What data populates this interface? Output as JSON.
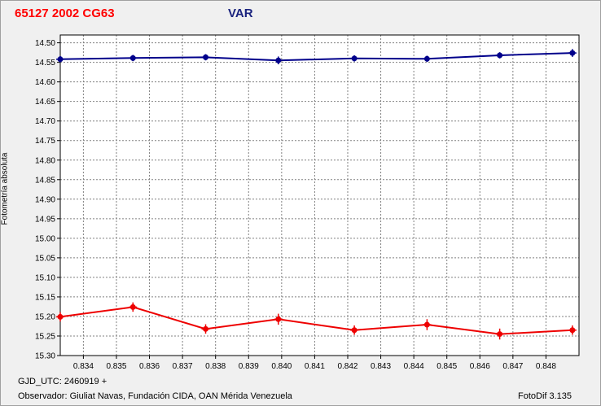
{
  "header": {
    "object_title": "65127 2002 CG63",
    "series_title": "VAR"
  },
  "footer": {
    "gjd": "GJD_UTC: 2460919 +",
    "observer": "Observador: Giuliat Navas, Fundación CIDA, OAN Mérida Venezuela",
    "version": "FotoDif 3.135"
  },
  "chart_data": {
    "type": "line",
    "title": "65127 2002 CG63",
    "subtitle": "VAR",
    "xlabel": "",
    "ylabel": "Fotometría absoluta",
    "xlim": [
      0.8333,
      0.849
    ],
    "ylim": [
      14.48,
      15.3
    ],
    "y_inverted": true,
    "grid": true,
    "x_ticks": [
      "0.834",
      "0.835",
      "0.836",
      "0.837",
      "0.838",
      "0.839",
      "0.840",
      "0.841",
      "0.842",
      "0.843",
      "0.844",
      "0.845",
      "0.846",
      "0.847",
      "0.848"
    ],
    "y_ticks": [
      "14.50",
      "14.55",
      "14.60",
      "14.65",
      "14.70",
      "14.75",
      "14.80",
      "14.85",
      "14.90",
      "14.95",
      "15.00",
      "15.05",
      "15.10",
      "15.15",
      "15.20",
      "15.25",
      "15.30"
    ],
    "series": [
      {
        "color": "#00008b",
        "x": [
          0.8333,
          0.8355,
          0.8377,
          0.8399,
          0.8422,
          0.8444,
          0.8466,
          0.8488
        ],
        "y": [
          14.542,
          14.539,
          14.537,
          14.545,
          14.54,
          14.541,
          14.532,
          14.526
        ],
        "err": [
          0.008,
          0.008,
          0.008,
          0.01,
          0.008,
          0.008,
          0.008,
          0.01
        ]
      },
      {
        "color": "#ee0000",
        "x": [
          0.8333,
          0.8355,
          0.8377,
          0.8399,
          0.8422,
          0.8444,
          0.8466,
          0.8488
        ],
        "y": [
          15.201,
          15.176,
          15.232,
          15.207,
          15.235,
          15.221,
          15.245,
          15.235
        ],
        "err": [
          0.012,
          0.012,
          0.012,
          0.014,
          0.012,
          0.014,
          0.014,
          0.012
        ]
      }
    ]
  }
}
